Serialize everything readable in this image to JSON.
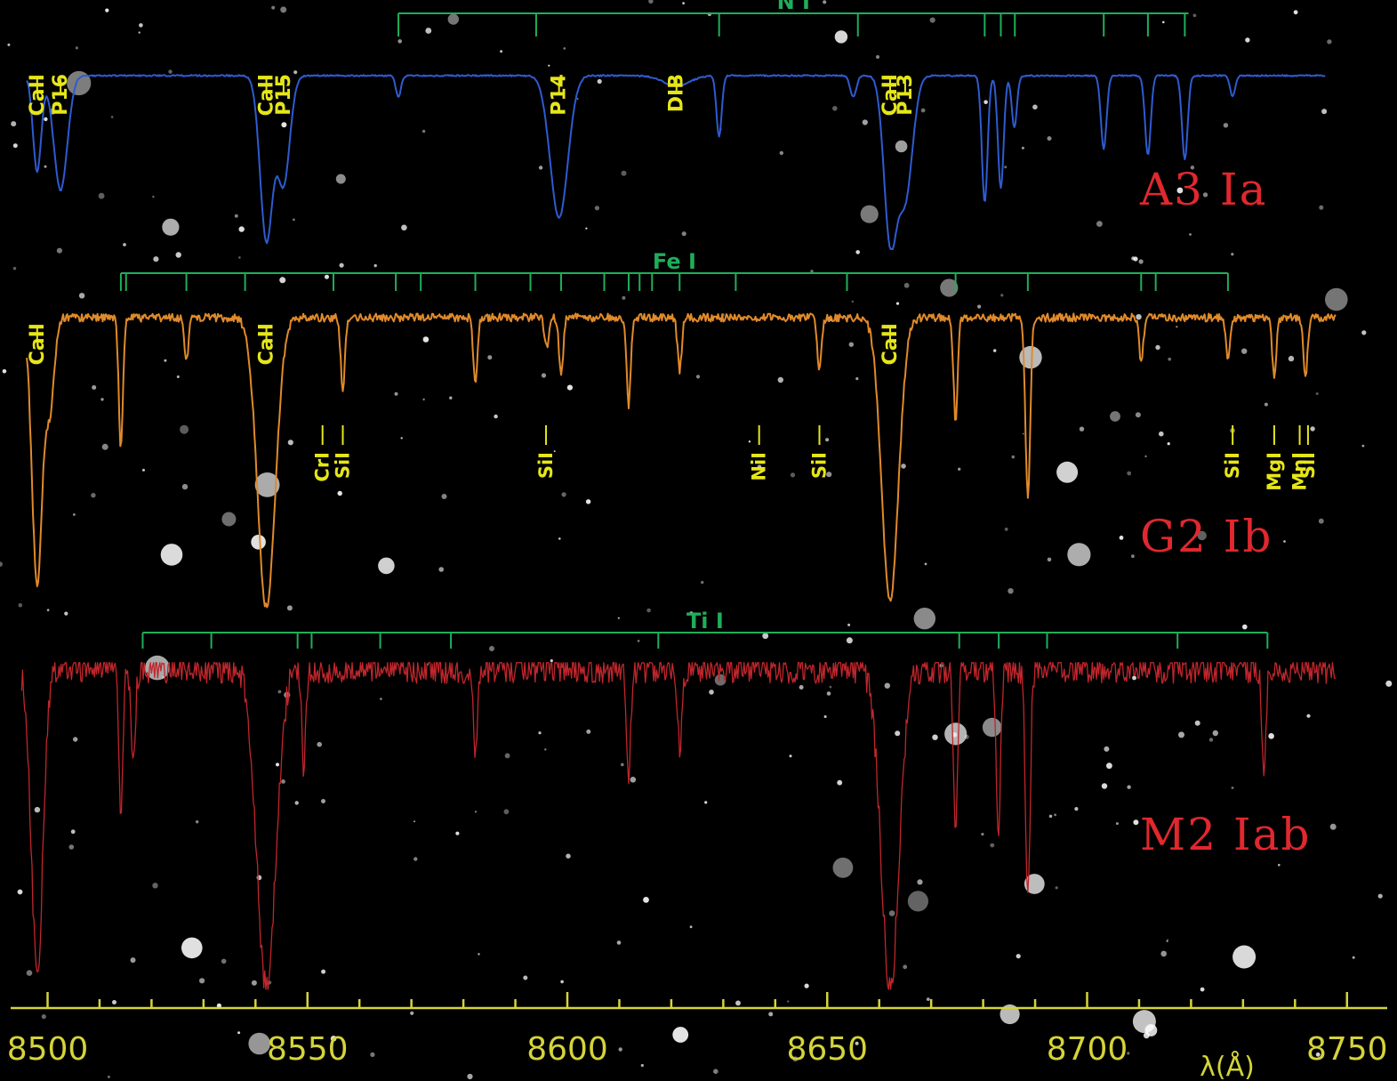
{
  "colors": {
    "background": "#000000",
    "a3": "#2f5bd0",
    "g2": "#e08a2a",
    "m2": "#c0262c",
    "multiplet": "#1fae5a",
    "line_label": "#e6e619",
    "axis": "#d4d43a",
    "star_label": "#e0282e"
  },
  "chart_data": {
    "type": "line",
    "xlabel": "λ(Å)",
    "xlim": [
      8495,
      8753
    ],
    "x_ticks": [
      8500,
      8550,
      8600,
      8650,
      8700,
      8750
    ],
    "x_tick_labels": [
      "8500",
      "8550",
      "8600",
      "8650",
      "8700",
      "8750"
    ],
    "minor_tick_step": 10,
    "series": [
      {
        "name": "A3 Ia",
        "key": "a3",
        "continuum": 1.0,
        "x_range": [
          8496,
          8746
        ],
        "noise": 0.004,
        "lines": [
          {
            "x": 8498.0,
            "depth": 0.55,
            "width": 0.8
          },
          {
            "x": 8502.5,
            "depth": 0.66,
            "width": 1.3
          },
          {
            "x": 8542.1,
            "depth": 0.95,
            "width": 1.2
          },
          {
            "x": 8545.4,
            "depth": 0.62,
            "width": 1.2
          },
          {
            "x": 8567.5,
            "depth": 0.12,
            "width": 0.5
          },
          {
            "x": 8598.4,
            "depth": 0.82,
            "width": 1.7
          },
          {
            "x": 8621.0,
            "depth": 0.06,
            "width": 2.5
          },
          {
            "x": 8629.2,
            "depth": 0.35,
            "width": 0.5
          },
          {
            "x": 8655.0,
            "depth": 0.12,
            "width": 0.6
          },
          {
            "x": 8662.1,
            "depth": 0.92,
            "width": 1.2
          },
          {
            "x": 8665.0,
            "depth": 0.7,
            "width": 1.4
          },
          {
            "x": 8680.3,
            "depth": 0.73,
            "width": 0.55
          },
          {
            "x": 8683.4,
            "depth": 0.65,
            "width": 0.55
          },
          {
            "x": 8686.0,
            "depth": 0.3,
            "width": 0.5
          },
          {
            "x": 8703.2,
            "depth": 0.42,
            "width": 0.55
          },
          {
            "x": 8711.7,
            "depth": 0.46,
            "width": 0.55
          },
          {
            "x": 8718.8,
            "depth": 0.48,
            "width": 0.55
          },
          {
            "x": 8728.0,
            "depth": 0.12,
            "width": 0.5
          }
        ]
      },
      {
        "name": "G2 Ib",
        "key": "g2",
        "continuum": 1.0,
        "x_range": [
          8496,
          8748
        ],
        "noise": 0.014,
        "lines": [
          {
            "x": 8498.0,
            "depth": 0.92,
            "width": 1.0
          },
          {
            "x": 8500.5,
            "depth": 0.3,
            "width": 0.8
          },
          {
            "x": 8514.1,
            "depth": 0.45,
            "width": 0.4
          },
          {
            "x": 8526.7,
            "depth": 0.15,
            "width": 0.4
          },
          {
            "x": 8542.1,
            "depth": 1.0,
            "width": 1.7
          },
          {
            "x": 8556.8,
            "depth": 0.25,
            "width": 0.4
          },
          {
            "x": 8582.3,
            "depth": 0.22,
            "width": 0.4
          },
          {
            "x": 8596.0,
            "depth": 0.1,
            "width": 0.4
          },
          {
            "x": 8598.8,
            "depth": 0.2,
            "width": 0.4
          },
          {
            "x": 8611.8,
            "depth": 0.3,
            "width": 0.4
          },
          {
            "x": 8621.6,
            "depth": 0.18,
            "width": 0.4
          },
          {
            "x": 8648.5,
            "depth": 0.18,
            "width": 0.4
          },
          {
            "x": 8662.1,
            "depth": 0.98,
            "width": 1.6
          },
          {
            "x": 8674.7,
            "depth": 0.35,
            "width": 0.4
          },
          {
            "x": 8688.6,
            "depth": 0.62,
            "width": 0.45
          },
          {
            "x": 8710.4,
            "depth": 0.15,
            "width": 0.4
          },
          {
            "x": 8727.1,
            "depth": 0.15,
            "width": 0.4
          },
          {
            "x": 8736.0,
            "depth": 0.2,
            "width": 0.4
          },
          {
            "x": 8742.0,
            "depth": 0.2,
            "width": 0.4
          }
        ]
      },
      {
        "name": "M2 Iab",
        "key": "m2",
        "continuum": 1.0,
        "x_range": [
          8495,
          8748
        ],
        "noise": 0.045,
        "lines": [
          {
            "x": 8498.0,
            "depth": 0.95,
            "width": 1.1
          },
          {
            "x": 8514.1,
            "depth": 0.45,
            "width": 0.4
          },
          {
            "x": 8516.5,
            "depth": 0.3,
            "width": 0.4
          },
          {
            "x": 8542.1,
            "depth": 1.0,
            "width": 1.8
          },
          {
            "x": 8549.3,
            "depth": 0.3,
            "width": 0.4
          },
          {
            "x": 8582.3,
            "depth": 0.25,
            "width": 0.4
          },
          {
            "x": 8611.8,
            "depth": 0.35,
            "width": 0.4
          },
          {
            "x": 8621.6,
            "depth": 0.25,
            "width": 0.4
          },
          {
            "x": 8662.1,
            "depth": 1.0,
            "width": 1.7
          },
          {
            "x": 8674.7,
            "depth": 0.52,
            "width": 0.4
          },
          {
            "x": 8682.9,
            "depth": 0.55,
            "width": 0.4
          },
          {
            "x": 8688.6,
            "depth": 0.7,
            "width": 0.45
          },
          {
            "x": 8734.0,
            "depth": 0.3,
            "width": 0.4
          }
        ]
      }
    ],
    "multiplets": [
      {
        "key": "a3_n1",
        "text": "N I",
        "series": "a3",
        "x_from": 8567.5,
        "x_to": 8719.5,
        "ticks": [
          8567.5,
          8594.0,
          8629.2,
          8655.9,
          8680.3,
          8683.4,
          8686.1,
          8703.2,
          8711.7,
          8718.8
        ]
      },
      {
        "key": "g2_fe1",
        "text": "Fe I",
        "series": "g2",
        "x_from": 8514.1,
        "x_to": 8727.1,
        "ticks": [
          8514.1,
          8515.1,
          8526.7,
          8538.0,
          8555.0,
          8567.0,
          8571.8,
          8582.3,
          8592.9,
          8598.8,
          8607.1,
          8611.8,
          8613.9,
          8616.3,
          8621.6,
          8632.4,
          8653.8,
          8674.7,
          8688.6,
          8710.4,
          8713.2,
          8727.1
        ]
      },
      {
        "key": "m2_ti1",
        "text": "Ti I",
        "series": "m2",
        "x_from": 8518.3,
        "x_to": 8734.7,
        "ticks": [
          8518.3,
          8531.5,
          8548.1,
          8550.8,
          8564.0,
          8577.6,
          8617.5,
          8675.4,
          8683.0,
          8692.3,
          8717.4,
          8734.7
        ]
      }
    ],
    "line_labels": [
      {
        "series": "a3",
        "text": "CaII",
        "x": 8498.0
      },
      {
        "series": "a3",
        "text": "P16",
        "x": 8502.5
      },
      {
        "series": "a3",
        "text": "CaII",
        "x": 8542.1
      },
      {
        "series": "a3",
        "text": "P15",
        "x": 8545.4
      },
      {
        "series": "a3",
        "text": "P14",
        "x": 8598.4
      },
      {
        "series": "a3",
        "text": "DIB",
        "x": 8621.0
      },
      {
        "series": "a3",
        "text": "CaII",
        "x": 8662.1
      },
      {
        "series": "a3",
        "text": "P13",
        "x": 8665.0
      },
      {
        "series": "g2",
        "text": "CaII",
        "x": 8498.0
      },
      {
        "series": "g2",
        "text": "CaII",
        "x": 8542.1
      },
      {
        "series": "g2",
        "text": "CaII",
        "x": 8662.1
      },
      {
        "series": "g2",
        "text": "CrI",
        "x": 8552.9,
        "below": true
      },
      {
        "series": "g2",
        "text": "SiI",
        "x": 8556.8,
        "below": true
      },
      {
        "series": "g2",
        "text": "SiI",
        "x": 8595.9,
        "below": true
      },
      {
        "series": "g2",
        "text": "NiI",
        "x": 8636.9,
        "below": true
      },
      {
        "series": "g2",
        "text": "SiI",
        "x": 8648.5,
        "below": true
      },
      {
        "series": "g2",
        "text": "SiI",
        "x": 8728.0,
        "below": true
      },
      {
        "series": "g2",
        "text": "MgI",
        "x": 8736.0,
        "below": true
      },
      {
        "series": "g2",
        "text": "MnI",
        "x": 8740.9,
        "below": true
      },
      {
        "series": "g2",
        "text": "SiI",
        "x": 8742.5,
        "below": true
      }
    ]
  }
}
